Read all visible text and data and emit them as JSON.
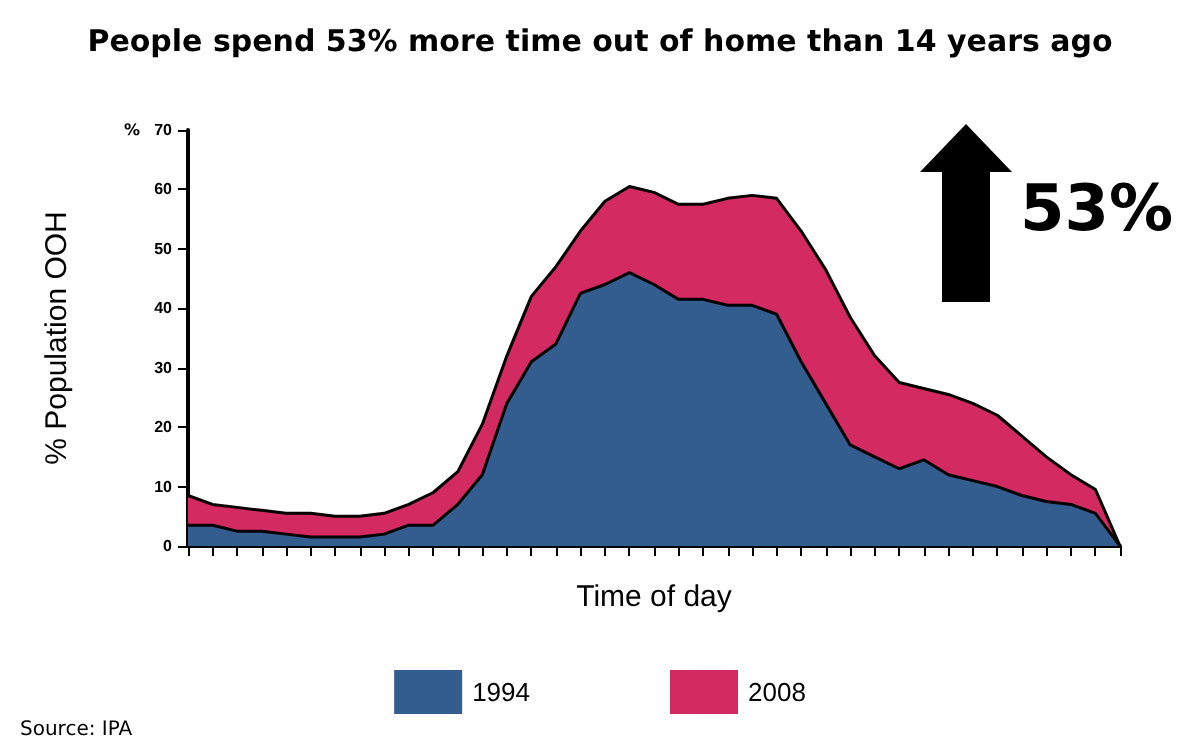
{
  "chart_data": {
    "type": "area",
    "title": "People spend 53% more time out of home than 14 years ago",
    "xlabel": "Time of day",
    "ylabel": "% Population OOH",
    "categories": [
      null,
      null,
      null,
      null,
      null,
      null,
      null,
      null,
      null,
      null,
      null,
      null,
      null,
      null,
      null,
      null,
      null,
      null,
      null,
      null,
      null,
      null,
      null,
      null,
      null,
      null,
      null,
      null,
      null,
      null,
      null,
      null,
      null,
      null,
      null,
      null,
      null,
      null,
      null
    ],
    "series": [
      {
        "name": "1994",
        "color": "#345d8f",
        "values": [
          3.5,
          3.5,
          2.5,
          2.5,
          2,
          1.5,
          1.5,
          1.5,
          2,
          3.5,
          3.5,
          7,
          12,
          24,
          31,
          34,
          42.5,
          44,
          46,
          44,
          41.5,
          41.5,
          40.5,
          40.5,
          39,
          31,
          24,
          17,
          15,
          13,
          14.5,
          12,
          11,
          10,
          8.5,
          7.5,
          7,
          5.5,
          0
        ]
      },
      {
        "name": "2008",
        "color": "#d42a62",
        "values": [
          8.5,
          7,
          6.5,
          6,
          5.5,
          5.5,
          5,
          5,
          5.5,
          7,
          9,
          12.5,
          20.5,
          32,
          42,
          47,
          53,
          58,
          60.5,
          59.5,
          57.5,
          57.5,
          58.5,
          59,
          58.5,
          53,
          46.5,
          38.5,
          32,
          27.5,
          26.5,
          25.5,
          24,
          22,
          18.5,
          15,
          12,
          9.5,
          0
        ]
      }
    ],
    "ylim": [
      0,
      70
    ],
    "yticks": [
      0,
      10,
      20,
      30,
      40,
      50,
      60,
      70
    ],
    "grid": false,
    "legend": "bottom",
    "marker": "none",
    "line_style": "solid",
    "annotations": [
      "%",
      "53%",
      "Source: IPA"
    ]
  }
}
